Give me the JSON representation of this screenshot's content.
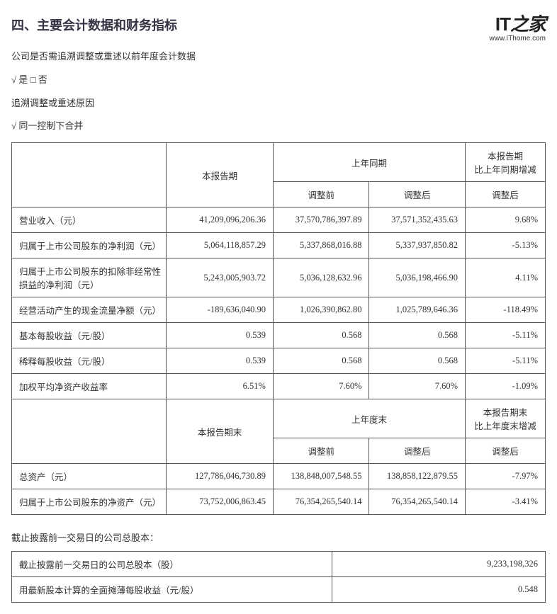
{
  "watermark": {
    "logo_left": "IT",
    "logo_right": "之家",
    "url": "www.IThome.com"
  },
  "heading": "四、主要会计数据和财务指标",
  "intro_line": "公司是否需追溯调整或重述以前年度会计数据",
  "checkbox_line": "√ 是 □ 否",
  "reason_line": "追溯调整或重述原因",
  "reason_value": "√ 同一控制下合并",
  "main_header": {
    "blank": "",
    "current": "本报告期",
    "prior_span": "上年同期",
    "change_span": "本报告期\n比上年同期增减",
    "pre_adj": "调整前",
    "post_adj": "调整后",
    "post_adj_chg": "调整后"
  },
  "rows_top": [
    {
      "label": "营业收入（元）",
      "cur": "41,209,096,206.36",
      "pre": "37,570,786,397.89",
      "post": "37,571,352,435.63",
      "chg": "9.68%"
    },
    {
      "label": "归属于上市公司股东的净利润（元）",
      "cur": "5,064,118,857.29",
      "pre": "5,337,868,016.88",
      "post": "5,337,937,850.82",
      "chg": "-5.13%"
    },
    {
      "label": "归属于上市公司股东的扣除非经常性损益的净利润（元）",
      "cur": "5,243,005,903.72",
      "pre": "5,036,128,632.96",
      "post": "5,036,198,466.90",
      "chg": "4.11%"
    },
    {
      "label": "经营活动产生的现金流量净额（元）",
      "cur": "-189,636,040.90",
      "pre": "1,026,390,862.80",
      "post": "1,025,789,646.36",
      "chg": "-118.49%"
    },
    {
      "label": "基本每股收益（元/股）",
      "cur": "0.539",
      "pre": "0.568",
      "post": "0.568",
      "chg": "-5.11%"
    },
    {
      "label": "稀释每股收益（元/股）",
      "cur": "0.539",
      "pre": "0.568",
      "post": "0.568",
      "chg": "-5.11%"
    },
    {
      "label": "加权平均净资产收益率",
      "cur": "6.51%",
      "pre": "7.60%",
      "post": "7.60%",
      "chg": "-1.09%"
    }
  ],
  "mid_header": {
    "current_end": "本报告期末",
    "prior_end_span": "上年度末",
    "change_end_span": "本报告期末\n比上年度末增减",
    "pre_adj": "调整前",
    "post_adj": "调整后",
    "post_adj_chg": "调整后"
  },
  "rows_bottom": [
    {
      "label": "总资产（元）",
      "cur": "127,786,046,730.89",
      "pre": "138,848,007,548.55",
      "post": "138,858,122,879.55",
      "chg": "-7.97%"
    },
    {
      "label": "归属于上市公司股东的净资产（元）",
      "cur": "73,752,006,863.45",
      "pre": "76,354,265,540.14",
      "post": "76,354,265,540.14",
      "chg": "-3.41%"
    }
  ],
  "share_note": "截止披露前一交易日的公司总股本：",
  "share_rows": [
    {
      "label": "截止披露前一交易日的公司总股本（股）",
      "val": "9,233,198,326"
    },
    {
      "label": "用最新股本计算的全面摊薄每股收益（元/股）",
      "val": "0.548"
    }
  ]
}
